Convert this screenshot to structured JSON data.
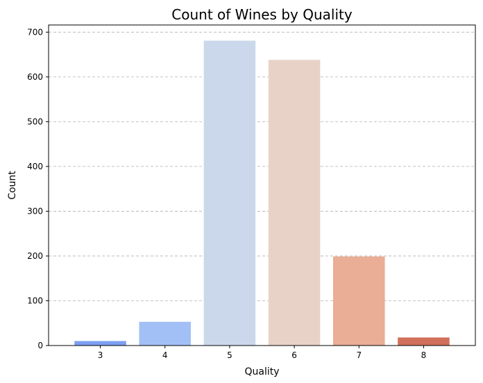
{
  "chart_data": {
    "type": "bar",
    "title": "Count of Wines by Quality",
    "xlabel": "Quality",
    "ylabel": "Count",
    "categories": [
      "3",
      "4",
      "5",
      "6",
      "7",
      "8"
    ],
    "values": [
      10,
      53,
      681,
      638,
      199,
      18
    ],
    "colors": [
      "#7b9ff2",
      "#a3c0f6",
      "#cbd8eb",
      "#e8d2c8",
      "#eaad95",
      "#d0705c"
    ],
    "ylim": [
      0,
      716
    ],
    "yticks": [
      0,
      100,
      200,
      300,
      400,
      500,
      600,
      700
    ],
    "grid": "y-dashed",
    "legend": "none"
  }
}
